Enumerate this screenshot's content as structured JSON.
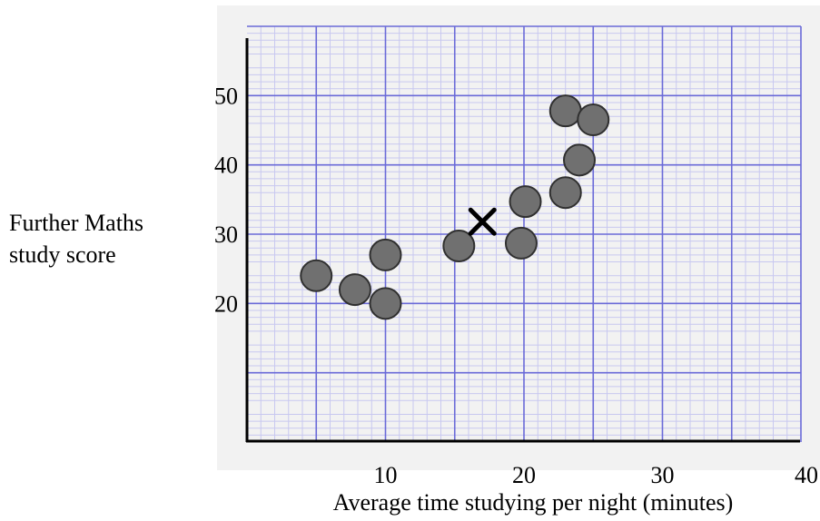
{
  "chart_data": {
    "type": "scatter",
    "title": "",
    "xlabel": "Average time studying per night (minutes)",
    "ylabel_lines": [
      "Further Maths",
      "study score"
    ],
    "xlim": [
      0,
      40
    ],
    "ylim": [
      0,
      60
    ],
    "x_ticks": [
      10,
      20,
      30,
      40
    ],
    "y_ticks": [
      20,
      30,
      40,
      50
    ],
    "grid": true,
    "colors": {
      "grid_major": "#6a6ad8",
      "grid_minor": "#c8c8f0",
      "grid_background": "#f2f2f2",
      "point_fill": "#707070",
      "point_stroke": "#303030",
      "axis": "#000000"
    },
    "points": [
      {
        "x": 5,
        "y": 24
      },
      {
        "x": 7.8,
        "y": 22
      },
      {
        "x": 10,
        "y": 27
      },
      {
        "x": 10,
        "y": 20
      },
      {
        "x": 15.3,
        "y": 28.3
      },
      {
        "x": 19.8,
        "y": 28.7
      },
      {
        "x": 20.1,
        "y": 34.7
      },
      {
        "x": 23,
        "y": 47.8
      },
      {
        "x": 23,
        "y": 36
      },
      {
        "x": 24,
        "y": 40.7
      },
      {
        "x": 25,
        "y": 46.5
      }
    ],
    "marker_x": {
      "x": 17,
      "y": 31.8
    }
  }
}
